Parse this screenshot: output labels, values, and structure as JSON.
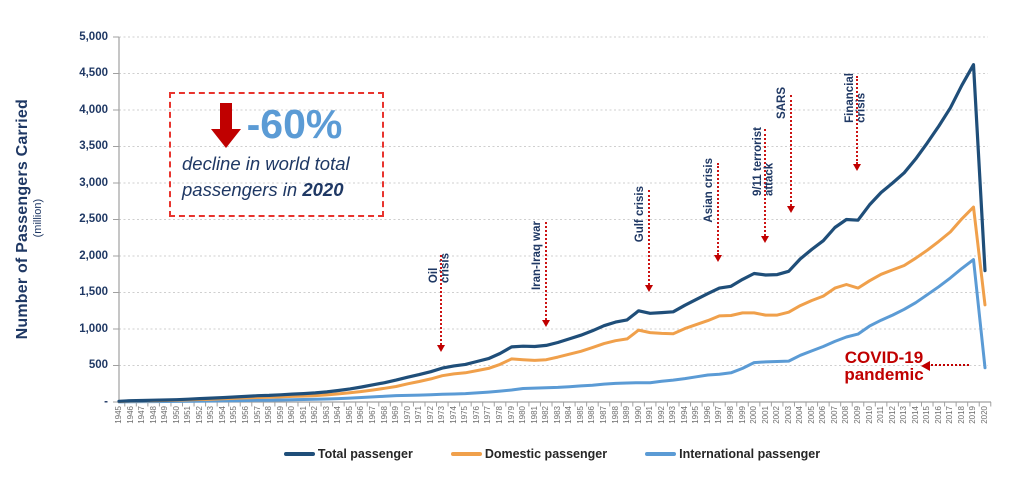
{
  "chart_data": {
    "type": "line",
    "title": "",
    "ylabel": "Number of Passengers Carried",
    "ylabel_unit": "(million)",
    "ylim": [
      0,
      5000
    ],
    "y_tick_interval": 500,
    "y_tick_labels": [
      "-",
      "500",
      "1,000",
      "1,500",
      "2,000",
      "2,500",
      "3,000",
      "3,500",
      "4,000",
      "4,500",
      "5,000"
    ],
    "grid": "horizontal dotted",
    "legend_position": "bottom-center",
    "years": [
      1945,
      1946,
      1947,
      1948,
      1949,
      1950,
      1951,
      1952,
      1953,
      1954,
      1955,
      1956,
      1957,
      1958,
      1959,
      1960,
      1961,
      1962,
      1963,
      1964,
      1965,
      1966,
      1967,
      1968,
      1969,
      1970,
      1971,
      1972,
      1973,
      1974,
      1975,
      1976,
      1977,
      1978,
      1979,
      1980,
      1981,
      1982,
      1983,
      1984,
      1985,
      1986,
      1987,
      1988,
      1989,
      1990,
      1991,
      1992,
      1993,
      1994,
      1995,
      1996,
      1997,
      1998,
      1999,
      2000,
      2001,
      2002,
      2003,
      2004,
      2005,
      2006,
      2007,
      2008,
      2009,
      2010,
      2011,
      2012,
      2013,
      2014,
      2015,
      2016,
      2017,
      2018,
      2019,
      2020
    ],
    "series": [
      {
        "name": "Total passenger",
        "color": "#1F4E79",
        "values": [
          9,
          18,
          21,
          24,
          28,
          31,
          39,
          46,
          53,
          60,
          68,
          77,
          86,
          90,
          98,
          108,
          115,
          125,
          138,
          158,
          180,
          205,
          235,
          265,
          300,
          340,
          375,
          415,
          465,
          495,
          515,
          555,
          595,
          665,
          755,
          765,
          760,
          775,
          815,
          865,
          915,
          975,
          1045,
          1095,
          1125,
          1250,
          1215,
          1225,
          1235,
          1325,
          1405,
          1485,
          1560,
          1585,
          1680,
          1760,
          1740,
          1745,
          1790,
          1960,
          2090,
          2210,
          2390,
          2500,
          2490,
          2700,
          2870,
          3000,
          3140,
          3330,
          3550,
          3780,
          4030,
          4340,
          4620,
          1800
        ]
      },
      {
        "name": "Domestic passenger",
        "color": "#F0A04B",
        "values": [
          7,
          14,
          16,
          18,
          21,
          23,
          29,
          34,
          39,
          44,
          50,
          56,
          62,
          65,
          70,
          77,
          81,
          88,
          97,
          111,
          126,
          144,
          165,
          187,
          212,
          250,
          281,
          317,
          360,
          385,
          400,
          430,
          460,
          515,
          590,
          580,
          570,
          580,
          615,
          655,
          695,
          745,
          800,
          840,
          865,
          985,
          950,
          940,
          935,
          1005,
          1060,
          1115,
          1180,
          1185,
          1220,
          1220,
          1190,
          1190,
          1230,
          1320,
          1390,
          1450,
          1560,
          1610,
          1560,
          1660,
          1750,
          1810,
          1870,
          1970,
          2080,
          2200,
          2330,
          2510,
          2670,
          1330
        ]
      },
      {
        "name": "International passenger",
        "color": "#5B9BD5",
        "values": [
          2,
          4,
          5,
          6,
          7,
          8,
          10,
          12,
          14,
          16,
          18,
          21,
          24,
          25,
          28,
          31,
          34,
          37,
          41,
          47,
          54,
          61,
          70,
          78,
          88,
          90,
          94,
          98,
          105,
          110,
          115,
          125,
          135,
          150,
          165,
          185,
          190,
          195,
          200,
          210,
          220,
          230,
          245,
          255,
          260,
          265,
          265,
          285,
          300,
          320,
          345,
          370,
          380,
          400,
          460,
          540,
          550,
          555,
          560,
          640,
          700,
          760,
          830,
          890,
          930,
          1040,
          1120,
          1190,
          1270,
          1360,
          1470,
          1580,
          1700,
          1830,
          1950,
          470
        ]
      }
    ],
    "annotations": [
      {
        "id": "oil-crisis",
        "lines": [
          "Oil",
          "crisis"
        ],
        "year": 1973
      },
      {
        "id": "iran-iraq-war",
        "lines": [
          "Iran-Iraq war"
        ],
        "year": 1982
      },
      {
        "id": "gulf-crisis",
        "lines": [
          "Gulf crisis"
        ],
        "year": 1991
      },
      {
        "id": "asian-crisis",
        "lines": [
          "Asian crisis"
        ],
        "year": 1997
      },
      {
        "id": "september-11-terrorist-attack",
        "lines": [
          "9/11 terrorist",
          "attack"
        ],
        "year": 2001
      },
      {
        "id": "sars",
        "lines": [
          "SARS"
        ],
        "year": 2003
      },
      {
        "id": "financial-crisis",
        "lines": [
          "Financial",
          "crisis"
        ],
        "year": 2009
      }
    ],
    "annotation_text_color": "#1F3864",
    "annotation_arrow_color": "#C00000",
    "axis_color": "#A0A0A0",
    "gridline_color": "#CFCFCF"
  },
  "callout": {
    "value": "-60%",
    "line1": "decline in world total",
    "line2_prefix": "passengers in ",
    "line2_bold": "2020",
    "value_color": "#5B9BD5",
    "text_color": "#1F3864",
    "border_color": "#E8342E",
    "arrow_color": "#C00000"
  },
  "covid_annotation": {
    "line1": "COVID-19",
    "line2": "pandemic",
    "color": "#C00000"
  },
  "legend": {
    "items": [
      "Total passenger",
      "Domestic passenger",
      "International passenger"
    ]
  }
}
